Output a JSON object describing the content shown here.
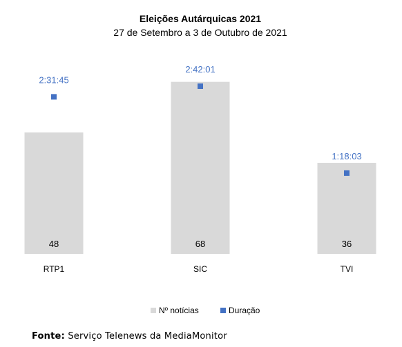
{
  "chart_data": {
    "type": "bar",
    "title": "Eleições Autárquicas 2021",
    "subtitle": "27 de Setembro a 3 de Outubro de 2021",
    "categories": [
      "RTP1",
      "SIC",
      "TVI"
    ],
    "series": [
      {
        "name": "Nº notícias",
        "kind": "bar",
        "values": [
          48,
          68,
          36
        ],
        "labels": [
          "48",
          "68",
          "36"
        ],
        "color": "#d9d9d9"
      },
      {
        "name": "Duração",
        "kind": "scatter",
        "values": [
          9105,
          9721,
          4683
        ],
        "labels": [
          "2:31:45",
          "2:42:01",
          "1:18:03"
        ],
        "color": "#4472c4"
      }
    ],
    "bar_ylim": [
      0,
      75
    ],
    "duration_ylim": [
      0,
      11000
    ],
    "legend_position": "bottom",
    "grid": false
  },
  "source": {
    "label": "Fonte:",
    "text": "Serviço Telenews da MediaMonitor"
  }
}
